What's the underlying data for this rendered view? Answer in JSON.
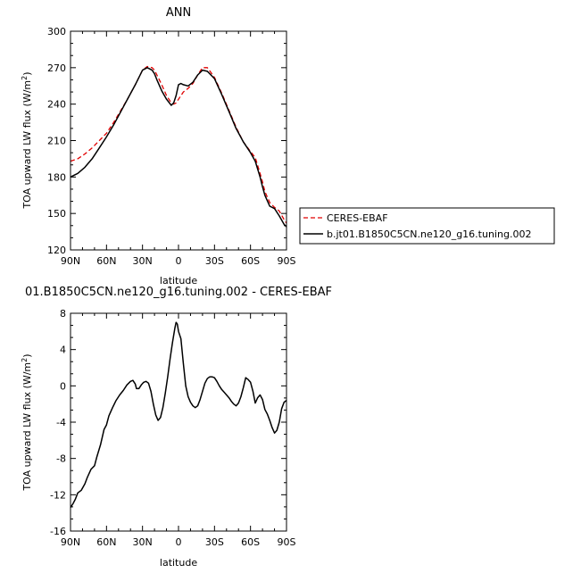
{
  "chart_data": [
    {
      "type": "line",
      "title": "ANN",
      "xlabel": "latitude",
      "ylabel": "TOA upward LW flux (W/m²)",
      "xlim": [
        90,
        -90
      ],
      "ylim": [
        120,
        300
      ],
      "x_ticks": [
        90,
        60,
        30,
        0,
        -30,
        -60,
        -90
      ],
      "x_tick_labels": [
        "90N",
        "60N",
        "30N",
        "0",
        "30S",
        "60S",
        "90S"
      ],
      "y_ticks": [
        120,
        150,
        180,
        210,
        240,
        270,
        300
      ],
      "y_tick_labels": [
        "120",
        "150",
        "180",
        "210",
        "240",
        "270",
        "300"
      ],
      "legend_position": "right",
      "series": [
        {
          "name": "CERES-EBAF",
          "color": "#e00000",
          "dash": "dashed",
          "x": [
            90,
            84,
            78,
            72,
            66,
            60,
            54,
            48,
            42,
            36,
            30,
            26,
            22,
            20,
            18,
            14,
            10,
            6,
            4,
            2,
            0,
            -4,
            -8,
            -12,
            -16,
            -20,
            -24,
            -30,
            -36,
            -42,
            -48,
            -54,
            -60,
            -64,
            -68,
            -70,
            -72,
            -76,
            -80,
            -84,
            -88,
            -90
          ],
          "y": [
            193,
            195,
            199,
            204,
            210,
            216,
            225,
            235,
            245,
            256,
            268,
            271,
            270,
            268,
            264,
            256,
            247,
            241,
            240,
            241,
            244,
            250,
            253,
            257,
            264,
            270,
            270,
            262,
            249,
            235,
            221,
            209,
            201,
            196,
            183,
            176,
            168,
            159,
            155,
            152,
            145,
            142
          ]
        },
        {
          "name": "b.jt01.B1850C5CN.ne120_g16.tuning.002",
          "color": "#000000",
          "dash": "solid",
          "x": [
            90,
            84,
            78,
            72,
            66,
            60,
            54,
            48,
            42,
            36,
            30,
            26,
            22,
            20,
            18,
            14,
            10,
            6,
            4,
            2,
            0,
            -2,
            -4,
            -8,
            -12,
            -16,
            -20,
            -24,
            -30,
            -36,
            -42,
            -48,
            -54,
            -60,
            -64,
            -68,
            -70,
            -72,
            -76,
            -80,
            -84,
            -88,
            -90
          ],
          "y": [
            180,
            183,
            188,
            195,
            204,
            213,
            223,
            234,
            245,
            256,
            268,
            270,
            268,
            265,
            260,
            251,
            244,
            239,
            241,
            247,
            256,
            257,
            256,
            255,
            258,
            264,
            268,
            267,
            261,
            248,
            234,
            220,
            209,
            200,
            193,
            180,
            172,
            165,
            156,
            154,
            148,
            141,
            139
          ]
        }
      ]
    },
    {
      "type": "line",
      "title": "01.B1850C5CN.ne120_g16.tuning.002 - CERES-EBAF",
      "xlabel": "latitude",
      "ylabel": "TOA upward LW flux (W/m²)",
      "xlim": [
        90,
        -90
      ],
      "ylim": [
        -16,
        8
      ],
      "x_ticks": [
        90,
        60,
        30,
        0,
        -30,
        -60,
        -90
      ],
      "x_tick_labels": [
        "90N",
        "60N",
        "30N",
        "0",
        "30S",
        "60S",
        "90S"
      ],
      "y_ticks": [
        -16,
        -12,
        -8,
        -4,
        0,
        4,
        8
      ],
      "y_tick_labels": [
        "-16",
        "-12",
        "-8",
        "-4",
        "0",
        "4",
        "8"
      ],
      "series": [
        {
          "color": "#000000",
          "dash": "solid",
          "x": [
            90,
            88,
            86,
            84,
            81,
            78,
            76,
            73,
            70,
            68,
            65,
            62,
            60,
            58,
            55,
            52,
            49,
            46,
            43,
            40,
            38,
            36,
            35,
            33,
            31,
            29,
            27,
            25,
            23,
            21,
            19,
            17,
            15,
            13,
            11,
            9,
            7,
            5,
            3,
            2,
            1,
            0,
            -2,
            -4,
            -6,
            -8,
            -10,
            -12,
            -14,
            -16,
            -18,
            -20,
            -22,
            -24,
            -26,
            -28,
            -30,
            -32,
            -34,
            -36,
            -38,
            -40,
            -42,
            -44,
            -46,
            -48,
            -50,
            -52,
            -54,
            -56,
            -58,
            -60,
            -62,
            -64,
            -66,
            -68,
            -70,
            -72,
            -74,
            -76,
            -78,
            -80,
            -82,
            -84,
            -86,
            -88,
            -89,
            -90
          ],
          "y": [
            -13.4,
            -13.0,
            -12.5,
            -11.8,
            -11.5,
            -10.8,
            -10.1,
            -9.2,
            -8.8,
            -7.8,
            -6.5,
            -4.8,
            -4.3,
            -3.3,
            -2.4,
            -1.6,
            -1.0,
            -0.5,
            0.1,
            0.5,
            0.6,
            0.2,
            -0.3,
            -0.3,
            0.1,
            0.4,
            0.5,
            0.3,
            -0.6,
            -2.0,
            -3.2,
            -3.8,
            -3.5,
            -2.4,
            -0.8,
            1.0,
            3.0,
            4.8,
            6.4,
            7.0,
            6.8,
            6.0,
            5.2,
            2.5,
            0.0,
            -1.2,
            -1.8,
            -2.2,
            -2.4,
            -2.2,
            -1.5,
            -0.6,
            0.3,
            0.8,
            1.0,
            1.0,
            0.9,
            0.5,
            0.0,
            -0.4,
            -0.7,
            -1.0,
            -1.3,
            -1.7,
            -2.0,
            -2.2,
            -1.9,
            -1.2,
            -0.2,
            0.9,
            0.7,
            0.4,
            -0.6,
            -1.9,
            -1.3,
            -1.0,
            -1.5,
            -2.6,
            -3.1,
            -3.8,
            -4.6,
            -5.2,
            -4.9,
            -4.0,
            -2.5,
            -1.8,
            -1.7,
            -1.6
          ]
        }
      ]
    }
  ]
}
